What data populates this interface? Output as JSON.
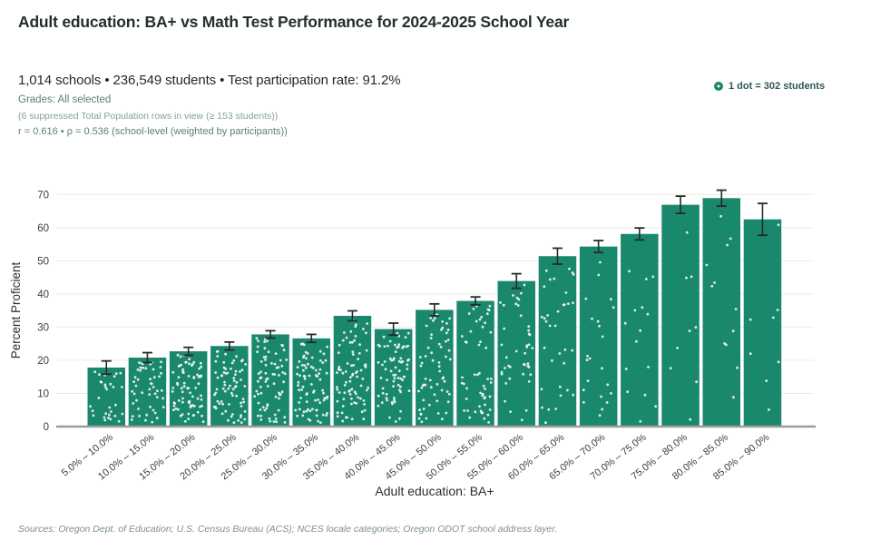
{
  "header": {
    "title": "Adult education: BA+ vs Math Test Performance for 2024-2025 School Year",
    "subtitle": "1,014 schools • 236,549 students • Test participation rate: 91.2%",
    "grades_line": "Grades: All selected",
    "suppressed_line": "(6 suppressed Total Population rows in view (≥ 153 students))",
    "stats_line": "r = 0.616 • ρ = 0.536 (school-level (weighted by participants))"
  },
  "footer": {
    "sources": "Sources: Oregon Dept. of Education; U.S. Census Bureau (ACS); NCES locale categories; Oregon ODOT school address layer."
  },
  "colors": {
    "bar": "#1a886d",
    "dot": "#ffffff",
    "error_bar": "#26292a",
    "gridline": "#e8ebea",
    "axis_line": "#9c9c9c",
    "tick_text": "#3d3d3d",
    "axis_title_text": "#2e2e2e",
    "legend_text": "#33565a"
  },
  "chart_data": {
    "type": "bar",
    "title": "Adult education: BA+ vs Math Test Performance for 2024-2025 School Year",
    "xlabel": "Adult education:  BA+",
    "ylabel": "Percent Proficient",
    "ylim": [
      0,
      73
    ],
    "yticks": [
      0,
      10,
      20,
      30,
      40,
      50,
      60,
      70
    ],
    "grid": true,
    "legend": "1 dot = 302 students",
    "legend_position": "top-right",
    "categories": [
      "5.0% – 10.0%",
      "10.0% – 15.0%",
      "15.0% – 20.0%",
      "20.0% – 25.0%",
      "25.0% – 30.0%",
      "30.0% – 35.0%",
      "35.0% – 40.0%",
      "40.0% – 45.0%",
      "45.0% – 50.0%",
      "50.0% – 55.0%",
      "55.0% – 60.0%",
      "60.0% – 65.0%",
      "65.0% – 70.0%",
      "70.0% – 75.0%",
      "75.0% – 80.0%",
      "80.0% – 85.0%",
      "85.0% – 90.0%"
    ],
    "values": [
      17.8,
      20.8,
      22.7,
      24.3,
      27.8,
      26.6,
      33.4,
      29.4,
      35.2,
      37.9,
      43.9,
      51.4,
      54.3,
      58.1,
      66.9,
      68.9,
      62.5
    ],
    "errors": [
      2.0,
      1.5,
      1.2,
      1.2,
      1.1,
      1.2,
      1.5,
      1.8,
      1.8,
      1.2,
      2.2,
      2.4,
      1.8,
      1.8,
      2.6,
      2.4,
      4.8
    ],
    "dot_counts": [
      30,
      48,
      74,
      70,
      72,
      78,
      80,
      72,
      62,
      52,
      42,
      34,
      22,
      15,
      9,
      12,
      8
    ],
    "dots_note": "white jitter dots inside each bar; 1 dot = 302 students"
  }
}
